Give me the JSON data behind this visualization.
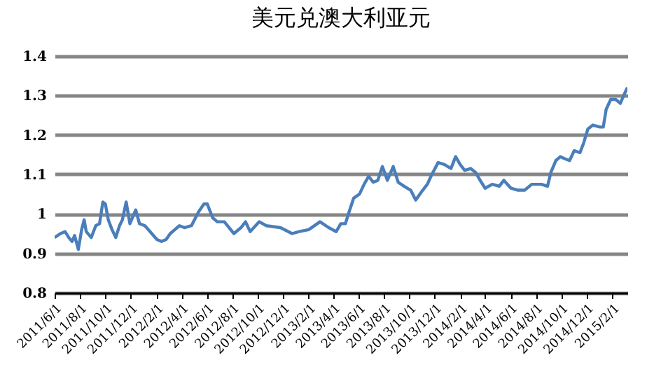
{
  "chart_data": {
    "type": "line",
    "title": "美元兑澳大利亚元",
    "x": [
      "2011-06-01",
      "2011-06-15",
      "2011-06-26",
      "2011-07-05",
      "2011-07-13",
      "2011-07-19",
      "2011-07-28",
      "2011-08-05",
      "2011-08-11",
      "2011-08-16",
      "2011-08-28",
      "2011-09-08",
      "2011-09-17",
      "2011-09-25",
      "2011-10-01",
      "2011-10-08",
      "2011-10-17",
      "2011-10-26",
      "2011-11-04",
      "2011-11-11",
      "2011-11-20",
      "2011-11-29",
      "2011-12-13",
      "2011-12-22",
      "2012-01-04",
      "2012-02-02",
      "2012-02-13",
      "2012-02-24",
      "2012-03-05",
      "2012-03-27",
      "2012-04-08",
      "2012-04-25",
      "2012-05-12",
      "2012-05-25",
      "2012-06-02",
      "2012-06-15",
      "2012-06-26",
      "2012-07-13",
      "2012-08-05",
      "2012-08-22",
      "2012-09-02",
      "2012-09-13",
      "2012-10-05",
      "2012-10-22",
      "2012-11-25",
      "2012-12-23",
      "2013-01-09",
      "2013-02-01",
      "2013-02-28",
      "2013-03-21",
      "2013-04-08",
      "2013-04-19",
      "2013-04-30",
      "2013-05-09",
      "2013-05-20",
      "2013-06-03",
      "2013-06-14",
      "2013-06-25",
      "2013-07-06",
      "2013-07-17",
      "2013-07-28",
      "2013-08-09",
      "2013-08-23",
      "2013-09-04",
      "2013-09-18",
      "2013-10-04",
      "2013-10-16",
      "2013-11-02",
      "2013-11-13",
      "2013-11-24",
      "2013-12-09",
      "2013-12-24",
      "2014-01-09",
      "2014-01-20",
      "2014-01-31",
      "2014-02-11",
      "2014-02-25",
      "2014-03-09",
      "2014-03-20",
      "2014-04-01",
      "2014-04-18",
      "2014-05-05",
      "2014-05-16",
      "2014-06-02",
      "2014-06-19",
      "2014-07-05",
      "2014-07-22",
      "2014-08-14",
      "2014-08-29",
      "2014-09-06",
      "2014-09-18",
      "2014-09-29",
      "2014-10-09",
      "2014-10-21",
      "2014-11-01",
      "2014-11-15",
      "2014-11-24",
      "2014-12-04",
      "2014-12-16",
      "2015-01-02",
      "2015-01-10",
      "2015-01-17",
      "2015-01-28",
      "2015-02-09",
      "2015-02-20",
      "2015-02-28",
      "2015-03-09"
    ],
    "series": [
      {
        "color": "#4a7ebb",
        "values": [
          0.94,
          0.95,
          0.955,
          0.94,
          0.93,
          0.945,
          0.91,
          0.96,
          0.985,
          0.955,
          0.94,
          0.97,
          0.975,
          1.03,
          1.025,
          0.985,
          0.96,
          0.94,
          0.97,
          0.985,
          1.03,
          0.975,
          1.01,
          0.975,
          0.97,
          0.935,
          0.93,
          0.935,
          0.95,
          0.97,
          0.965,
          0.97,
          1.005,
          1.025,
          1.025,
          0.99,
          0.98,
          0.98,
          0.95,
          0.965,
          0.98,
          0.955,
          0.98,
          0.97,
          0.965,
          0.95,
          0.955,
          0.96,
          0.98,
          0.965,
          0.955,
          0.975,
          0.975,
          1.005,
          1.04,
          1.05,
          1.075,
          1.095,
          1.08,
          1.085,
          1.12,
          1.085,
          1.12,
          1.08,
          1.07,
          1.06,
          1.035,
          1.06,
          1.075,
          1.1,
          1.13,
          1.125,
          1.115,
          1.145,
          1.125,
          1.11,
          1.115,
          1.105,
          1.085,
          1.065,
          1.075,
          1.07,
          1.085,
          1.065,
          1.06,
          1.06,
          1.075,
          1.075,
          1.07,
          1.105,
          1.135,
          1.145,
          1.14,
          1.135,
          1.16,
          1.155,
          1.18,
          1.215,
          1.225,
          1.22,
          1.22,
          1.265,
          1.29,
          1.29,
          1.28,
          1.3,
          1.32
        ]
      }
    ],
    "xlim": [
      "2011-06-01",
      "2015-03-09"
    ],
    "xticks": [
      {
        "value": "2011-06-01",
        "label": "2011/6/1"
      },
      {
        "value": "2011-08-01",
        "label": "2011/8/1"
      },
      {
        "value": "2011-10-01",
        "label": "2011/10/1"
      },
      {
        "value": "2011-12-01",
        "label": "2011/12/1"
      },
      {
        "value": "2012-02-01",
        "label": "2012/2/1"
      },
      {
        "value": "2012-04-01",
        "label": "2012/4/1"
      },
      {
        "value": "2012-06-01",
        "label": "2012/6/1"
      },
      {
        "value": "2012-08-01",
        "label": "2012/8/1"
      },
      {
        "value": "2012-10-01",
        "label": "2012/10/1"
      },
      {
        "value": "2012-12-01",
        "label": "2012/12/1"
      },
      {
        "value": "2013-02-01",
        "label": "2013/2/1"
      },
      {
        "value": "2013-04-01",
        "label": "2013/4/1"
      },
      {
        "value": "2013-06-01",
        "label": "2013/6/1"
      },
      {
        "value": "2013-08-01",
        "label": "2013/8/1"
      },
      {
        "value": "2013-10-01",
        "label": "2013/10/1"
      },
      {
        "value": "2013-12-01",
        "label": "2013/12/1"
      },
      {
        "value": "2014-02-01",
        "label": "2014/2/1"
      },
      {
        "value": "2014-04-01",
        "label": "2014/4/1"
      },
      {
        "value": "2014-06-01",
        "label": "2014/6/1"
      },
      {
        "value": "2014-08-01",
        "label": "2014/8/1"
      },
      {
        "value": "2014-10-01",
        "label": "2014/10/1"
      },
      {
        "value": "2014-12-01",
        "label": "2014/12/1"
      },
      {
        "value": "2015-02-01",
        "label": "2015/2/1"
      }
    ],
    "ylim": [
      0.8,
      1.4
    ],
    "yticks": [
      0.8,
      0.9,
      1,
      1.1,
      1.2,
      1.3,
      1.4
    ],
    "grid": "y"
  }
}
